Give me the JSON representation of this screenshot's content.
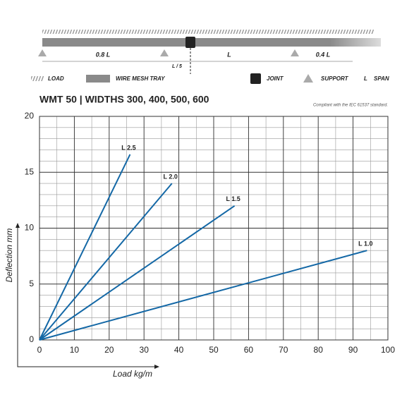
{
  "diagram": {
    "spans": [
      "0.8 L",
      "L",
      "0.4 L"
    ],
    "joint_offset": "L / 5",
    "legend": [
      "LOAD",
      "WIRE MESH TRAY",
      "JOINT",
      "SUPPORT",
      "L",
      "SPAN"
    ]
  },
  "chart_data": {
    "type": "line",
    "title": "WMT 50 | WIDTHS 300, 400, 500, 600",
    "note": "Compliant with the IEC 61537 standard.",
    "x_label": "Load kg/m",
    "y_label": "Deflection mm",
    "xlim": [
      0,
      100
    ],
    "ylim": [
      0,
      20
    ],
    "xticks": [
      0,
      10,
      20,
      30,
      40,
      50,
      60,
      70,
      80,
      90,
      100
    ],
    "yticks": [
      0,
      5,
      10,
      15,
      20
    ],
    "grid": true,
    "minor_grid": {
      "x": 5,
      "y": 1
    },
    "series": [
      {
        "name": "L 2.5",
        "color": "#1468a6",
        "x": [
          0,
          26
        ],
        "values": [
          0,
          16.6
        ]
      },
      {
        "name": "L 2.0",
        "color": "#1468a6",
        "x": [
          0,
          38
        ],
        "values": [
          0,
          14
        ]
      },
      {
        "name": "L 1.5",
        "color": "#1468a6",
        "x": [
          0,
          56
        ],
        "values": [
          0,
          12
        ]
      },
      {
        "name": "L 1.0",
        "color": "#1468a6",
        "x": [
          0,
          94
        ],
        "values": [
          0,
          8
        ]
      }
    ]
  }
}
